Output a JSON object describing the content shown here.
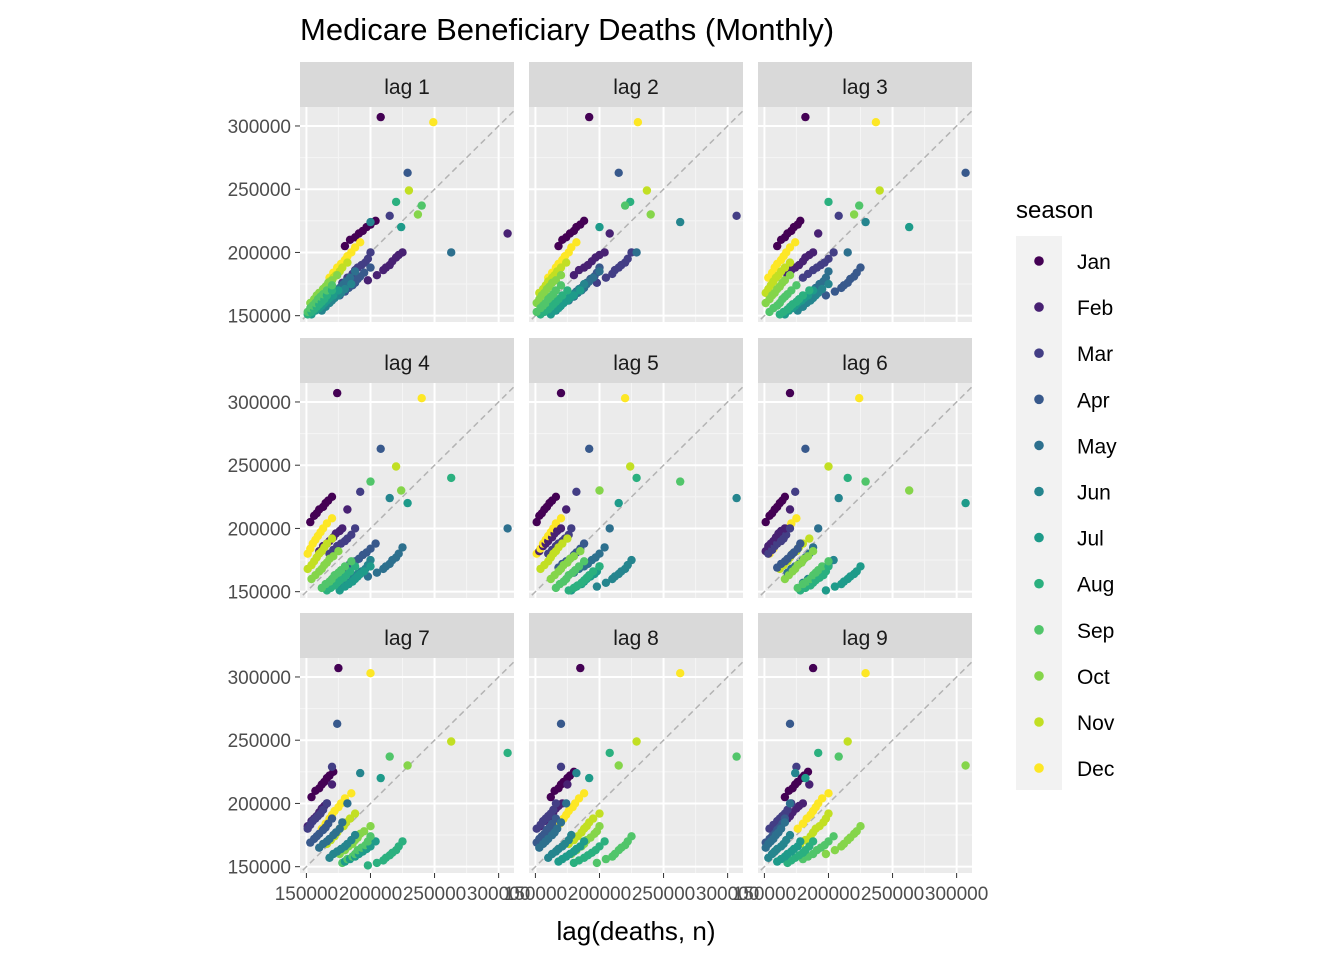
{
  "chart_data": {
    "type": "scatter",
    "title": "Medicare Beneficiary Deaths (Monthly)",
    "xlabel": "lag(deaths, n)",
    "ylabel": "",
    "facets": [
      "lag 1",
      "lag 2",
      "lag 3",
      "lag 4",
      "lag 5",
      "lag 6",
      "lag 7",
      "lag 8",
      "lag 9"
    ],
    "xlim": [
      145000,
      312000
    ],
    "ylim": [
      145000,
      315000
    ],
    "x_ticks": [
      150000,
      200000,
      250000,
      300000
    ],
    "y_ticks": [
      150000,
      200000,
      250000,
      300000
    ],
    "x_tick_labels": [
      "150000",
      "200000",
      "250000",
      "300000"
    ],
    "y_tick_labels": [
      "150000",
      "200000",
      "250000",
      "300000"
    ],
    "reference_line": "y = x (dashed, grey)",
    "grid": true,
    "legend": {
      "title": "season",
      "position": "right",
      "entries": [
        {
          "label": "Jan",
          "color": "#440154"
        },
        {
          "label": "Feb",
          "color": "#482173"
        },
        {
          "label": "Mar",
          "color": "#433E85"
        },
        {
          "label": "Apr",
          "color": "#38598C"
        },
        {
          "label": "May",
          "color": "#2D708E"
        },
        {
          "label": "Jun",
          "color": "#25858E"
        },
        {
          "label": "Jul",
          "color": "#1E9B8A"
        },
        {
          "label": "Aug",
          "color": "#2BB07F"
        },
        {
          "label": "Sep",
          "color": "#51C56A"
        },
        {
          "label": "Oct",
          "color": "#85D54A"
        },
        {
          "label": "Nov",
          "color": "#C2DF23"
        },
        {
          "label": "Dec",
          "color": "#FDE725"
        }
      ]
    },
    "monthly_deaths": {
      "Jan": [
        198000,
        205000,
        210000,
        212000,
        215000,
        217000,
        220000,
        222000,
        225000,
        307000
      ],
      "Feb": [
        178000,
        182000,
        186000,
        188000,
        190000,
        193000,
        196000,
        198000,
        200000,
        215000
      ],
      "Mar": [
        176000,
        180000,
        183000,
        186000,
        188000,
        190000,
        192000,
        195000,
        200000,
        229000
      ],
      "Apr": [
        166000,
        169000,
        172000,
        174000,
        176000,
        179000,
        181000,
        184000,
        188000,
        263000
      ],
      "May": [
        162000,
        165000,
        168000,
        170000,
        172000,
        175000,
        177000,
        180000,
        185000,
        200000
      ],
      "Jun": [
        154000,
        157000,
        160000,
        162000,
        164000,
        166000,
        168000,
        171000,
        175000,
        224000
      ],
      "Jul": [
        151000,
        154000,
        156000,
        158000,
        160000,
        162000,
        164000,
        166000,
        170000,
        220000
      ],
      "Aug": [
        151000,
        153000,
        155000,
        157000,
        159000,
        161000,
        163000,
        166000,
        170000,
        240000
      ],
      "Sep": [
        153000,
        156000,
        158000,
        160000,
        163000,
        165000,
        167000,
        170000,
        174000,
        237000
      ],
      "Oct": [
        160000,
        163000,
        166000,
        168000,
        171000,
        173000,
        176000,
        178000,
        182000,
        230000
      ],
      "Nov": [
        168000,
        171000,
        174000,
        177000,
        180000,
        182000,
        185000,
        188000,
        192000,
        249000
      ],
      "Dec": [
        180000,
        184000,
        188000,
        191000,
        194000,
        197000,
        200000,
        204000,
        208000,
        303000
      ]
    }
  }
}
